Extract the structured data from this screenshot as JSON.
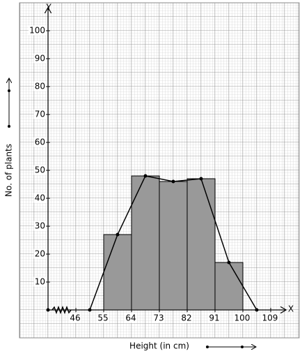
{
  "chart_data": {
    "type": "histogram",
    "x_label": "Height (in cm)",
    "y_label": "No. of plants",
    "x_axis_name": "X",
    "y_axis_name": "Y",
    "bins": [
      55,
      64,
      73,
      82,
      91,
      100
    ],
    "counts": [
      27,
      48,
      46,
      47,
      17
    ],
    "color": "#999999",
    "polygon": {
      "x": [
        50.5,
        59.5,
        68.5,
        77.5,
        86.5,
        95.5,
        104.5
      ],
      "values": [
        0,
        27,
        48,
        46,
        47,
        17,
        0
      ],
      "color": "#000000"
    },
    "xlim": [
      37,
      114
    ],
    "xticks": [
      46,
      55,
      64,
      73,
      82,
      91,
      100,
      109
    ],
    "ylim": [
      0,
      108
    ],
    "yticks": [
      10,
      20,
      30,
      40,
      50,
      60,
      70,
      80,
      90,
      100
    ],
    "grid": true
  }
}
